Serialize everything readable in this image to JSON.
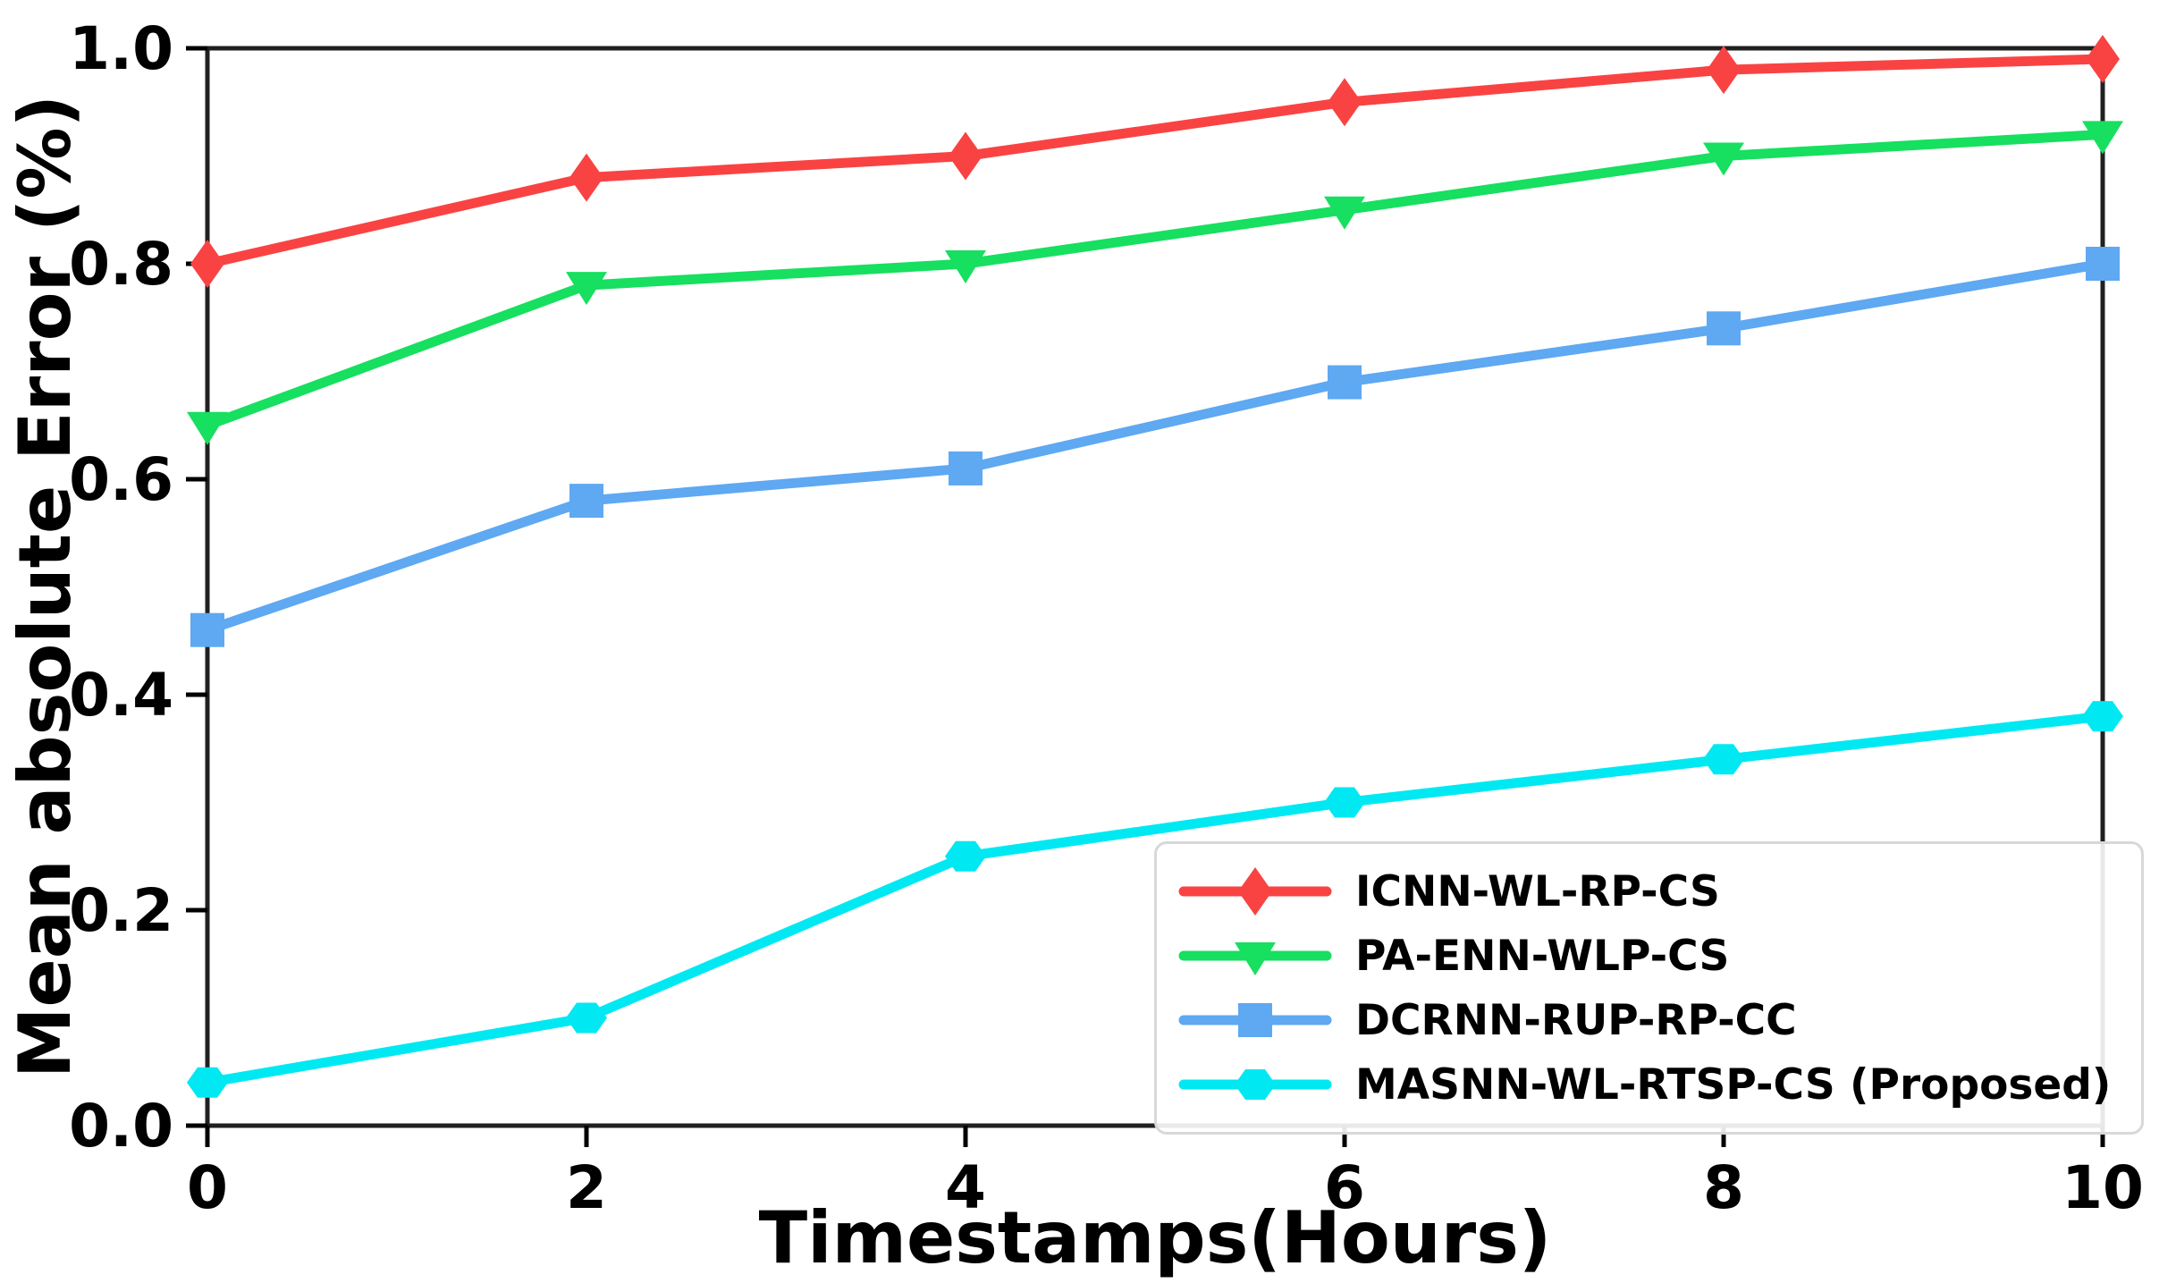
{
  "chart_data": {
    "type": "line",
    "title": "",
    "xlabel": "Timestamps(Hours)",
    "ylabel": "Mean absolute Error (%)",
    "x": [
      0,
      2,
      4,
      6,
      8,
      10
    ],
    "xlim": [
      0,
      10
    ],
    "ylim": [
      0.0,
      1.0
    ],
    "grid": false,
    "legend_position": "lower-right-inside",
    "x_ticks": [
      {
        "v": 0,
        "label": "0"
      },
      {
        "v": 2,
        "label": "2"
      },
      {
        "v": 4,
        "label": "4"
      },
      {
        "v": 6,
        "label": "6"
      },
      {
        "v": 8,
        "label": "8"
      },
      {
        "v": 10,
        "label": "10"
      }
    ],
    "y_ticks": [
      {
        "v": 0.0,
        "label": "0.0"
      },
      {
        "v": 0.2,
        "label": "0.2"
      },
      {
        "v": 0.4,
        "label": "0.4"
      },
      {
        "v": 0.6,
        "label": "0.6"
      },
      {
        "v": 0.8,
        "label": "0.8"
      },
      {
        "v": 1.0,
        "label": "1.0"
      }
    ],
    "series": [
      {
        "name": "ICNN-WL-RP-CS",
        "color": "#F94343",
        "marker": "diamond",
        "values": [
          0.8,
          0.88,
          0.9,
          0.95,
          0.98,
          0.99
        ]
      },
      {
        "name": "PA-ENN-WLP-CS",
        "color": "#17DF5F",
        "marker": "triangle-down",
        "values": [
          0.65,
          0.78,
          0.8,
          0.85,
          0.9,
          0.92
        ]
      },
      {
        "name": "DCRNN-RUP-RP-CC",
        "color": "#5FA8F2",
        "marker": "square",
        "values": [
          0.46,
          0.58,
          0.61,
          0.69,
          0.74,
          0.8
        ]
      },
      {
        "name": "MASNN-WL-RTSP-CS (Proposed)",
        "color": "#00E9F2",
        "marker": "hexagon",
        "values": [
          0.04,
          0.1,
          0.25,
          0.3,
          0.34,
          0.38
        ]
      }
    ],
    "colors": {
      "spine": "#202020",
      "tick": "#000000",
      "legend_border": "#d8d8d8",
      "background": "#ffffff"
    }
  }
}
